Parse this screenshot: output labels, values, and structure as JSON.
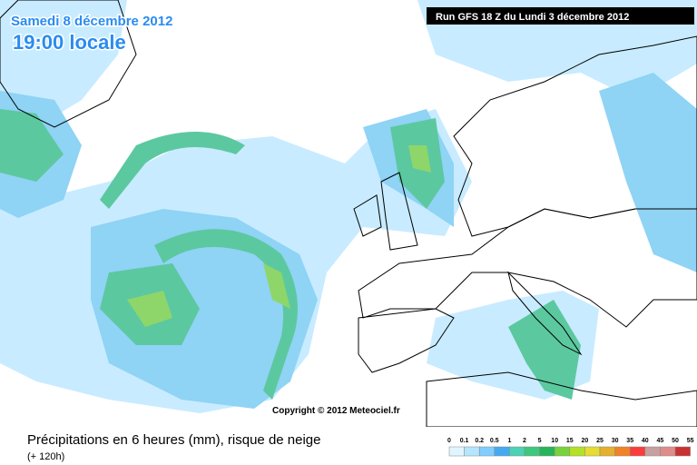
{
  "header": {
    "date": "Samedi 8 décembre 2012",
    "time": "19:00 locale",
    "run": "Run GFS 18 Z du Lundi 3 décembre 2012"
  },
  "copyright": "Copyright © 2012 Meteociel.fr",
  "legend": {
    "title": "Précipitations en 6 heures (mm), risque de neige",
    "subtitle": "(+ 120h)",
    "labels": [
      "0",
      "0.1",
      "0.2",
      "0.5",
      "1",
      "2",
      "5",
      "10",
      "15",
      "20",
      "25",
      "30",
      "35",
      "40",
      "45",
      "50",
      "55"
    ],
    "colors": [
      "#e1f5ff",
      "#b4e6ff",
      "#82cdff",
      "#46aaf0",
      "#4cd2b4",
      "#3cc87d",
      "#28b45a",
      "#78d23c",
      "#b4e128",
      "#e6dc32",
      "#e6af2d",
      "#f08228",
      "#fa3c3c",
      "#c8a0a0",
      "#e08c8c",
      "#c83232"
    ]
  }
}
